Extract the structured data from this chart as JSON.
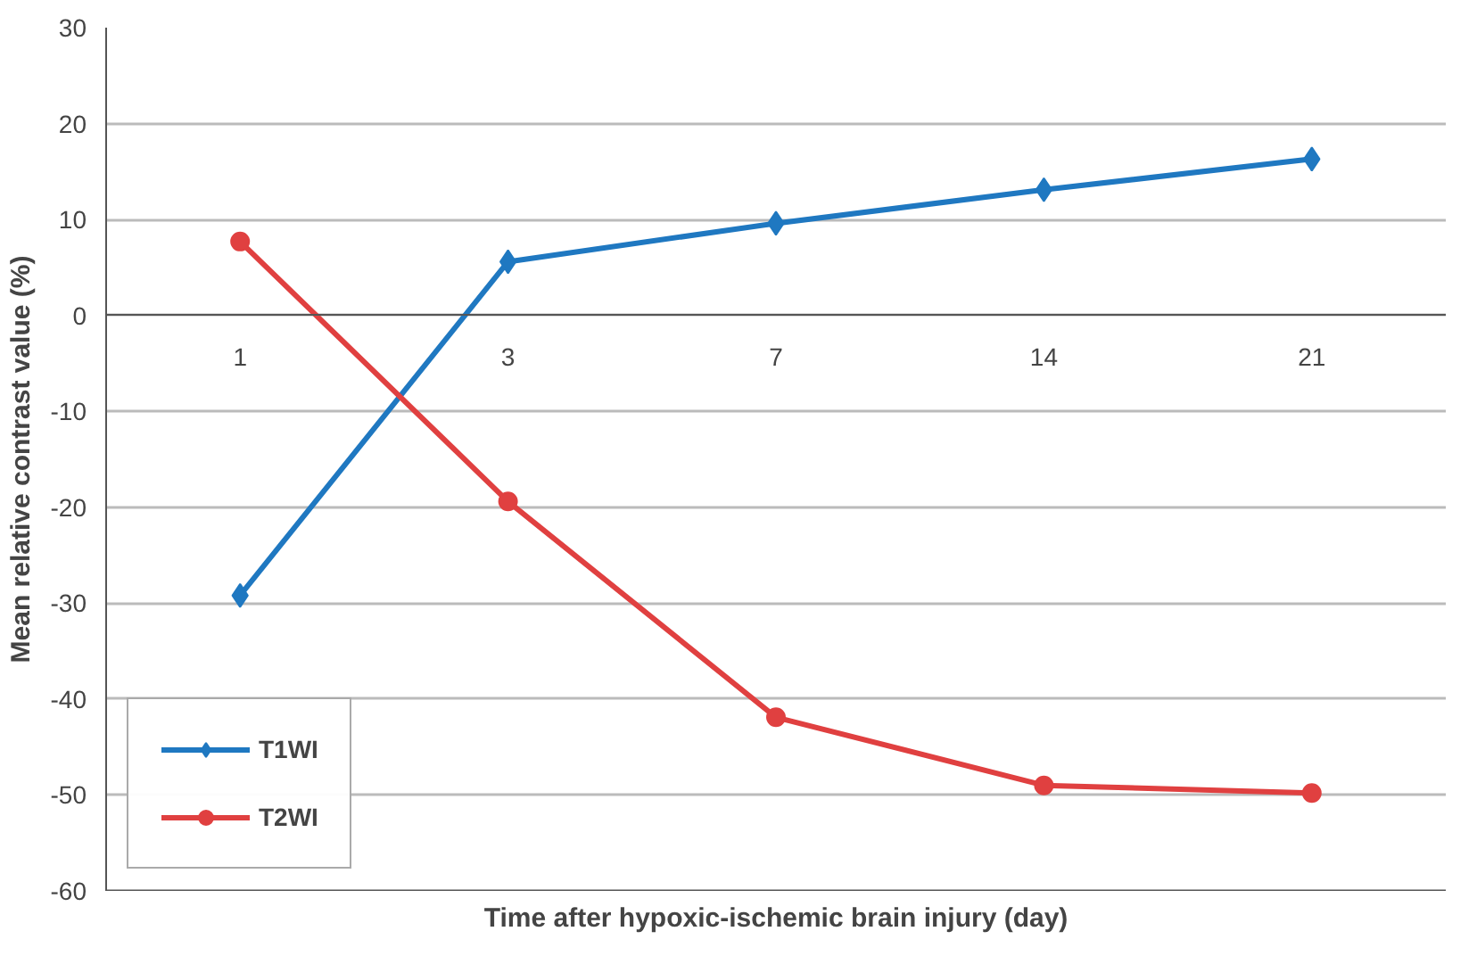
{
  "chart_data": {
    "type": "line",
    "xlabel": "Time after hypoxic-ischemic brain injury (day)",
    "ylabel": "Mean relative contrast value (%)",
    "categories": [
      "1",
      "3",
      "7",
      "14",
      "21"
    ],
    "series": [
      {
        "name": "T1WI",
        "color": "#1f78c1",
        "marker": "diamond",
        "values": [
          -29.2,
          5.6,
          9.6,
          13.1,
          16.3
        ]
      },
      {
        "name": "T2WI",
        "color": "#e04040",
        "marker": "circle",
        "values": [
          7.7,
          -19.4,
          -41.9,
          -49.0,
          -49.8
        ]
      }
    ],
    "ylim": [
      -60,
      30
    ],
    "yticks": [
      -60,
      -50,
      -40,
      -30,
      -20,
      -10,
      0,
      10,
      20,
      30
    ],
    "grid": "y",
    "legend": "bottom left",
    "line_style": "solid"
  }
}
